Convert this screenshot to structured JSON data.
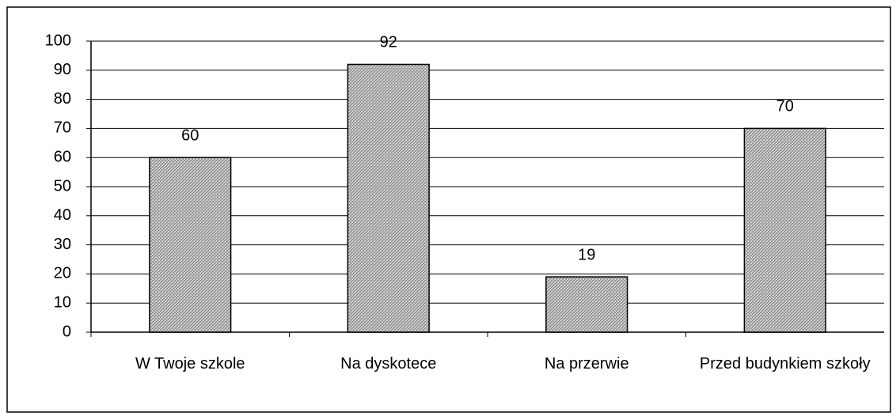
{
  "chart_data": {
    "type": "bar",
    "categories": [
      "W Twoje szkole",
      "Na dyskotece",
      "Na przerwie",
      "Przed budynkiem szkoły"
    ],
    "values": [
      60,
      92,
      19,
      70
    ],
    "color": "#b0b0b0",
    "ylim": [
      0,
      100
    ],
    "yticks": [
      0,
      10,
      20,
      30,
      40,
      50,
      60,
      70,
      80,
      90,
      100
    ],
    "grid": true
  }
}
